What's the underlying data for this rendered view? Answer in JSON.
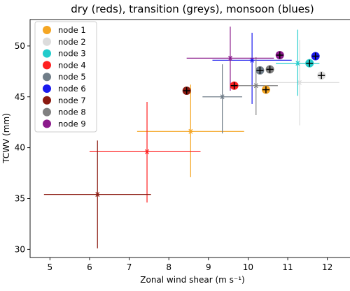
{
  "chart_data": {
    "type": "scatter",
    "title": "dry (reds), transition (greys), monsoon (blues)",
    "xlabel": "Zonal wind shear (m s⁻¹)",
    "ylabel": "TCWV (mm)",
    "xlim": [
      4.5,
      12.5
    ],
    "ylim": [
      29.2,
      52.6
    ],
    "xticks": [
      5,
      6,
      7,
      8,
      9,
      10,
      11,
      12
    ],
    "yticks": [
      30,
      35,
      40,
      45,
      50
    ],
    "legend_position": "top-left",
    "grid": false,
    "series": [
      {
        "name": "node 1",
        "color": "#f5a623",
        "circle": [
          10.45,
          45.7
        ],
        "plus": [
          10.45,
          45.7
        ],
        "star": [
          8.55,
          41.6
        ],
        "xerr": [
          7.2,
          9.9
        ],
        "yerr": [
          37.1,
          46.2
        ]
      },
      {
        "name": "node 2",
        "color": "#dcdcdc",
        "circle": [
          11.85,
          47.1
        ],
        "plus": [
          11.85,
          47.1
        ],
        "star": [
          11.3,
          46.4
        ],
        "xerr": [
          10.3,
          12.3
        ],
        "yerr": [
          42.2,
          50.6
        ]
      },
      {
        "name": "node 3",
        "color": "#22cccc",
        "circle": [
          11.55,
          48.3
        ],
        "plus": [
          11.55,
          48.3
        ],
        "star": [
          11.25,
          48.3
        ],
        "xerr": [
          10.7,
          11.8
        ],
        "yerr": [
          45.1,
          51.6
        ]
      },
      {
        "name": "node 4",
        "color": "#ff2020",
        "circle": [
          9.65,
          46.1
        ],
        "plus": [
          9.65,
          46.1
        ],
        "star": [
          7.45,
          39.6
        ],
        "xerr": [
          6.0,
          8.8
        ],
        "yerr": [
          34.6,
          44.5
        ]
      },
      {
        "name": "node 5",
        "color": "#707d88",
        "circle": [
          10.3,
          47.6
        ],
        "plus": [
          10.3,
          47.6
        ],
        "star": [
          9.35,
          45.0
        ],
        "xerr": [
          8.85,
          9.85
        ],
        "yerr": [
          41.4,
          48.2
        ]
      },
      {
        "name": "node 6",
        "color": "#1a1aee",
        "circle": [
          11.7,
          49.0
        ],
        "plus": [
          11.7,
          49.0
        ],
        "star": [
          10.1,
          48.6
        ],
        "xerr": [
          9.1,
          11.1
        ],
        "yerr": [
          44.3,
          51.3
        ]
      },
      {
        "name": "node 7",
        "color": "#8b1a10",
        "circle": [
          8.45,
          45.6
        ],
        "plus": [
          8.45,
          45.6
        ],
        "star": [
          6.2,
          35.4
        ],
        "xerr": [
          4.85,
          7.55
        ],
        "yerr": [
          30.1,
          40.7
        ]
      },
      {
        "name": "node 8",
        "color": "#808080",
        "circle": [
          10.55,
          47.7
        ],
        "plus": [
          10.55,
          47.7
        ],
        "star": [
          10.2,
          46.1
        ],
        "xerr": [
          9.7,
          10.75
        ],
        "yerr": [
          43.2,
          48.9
        ]
      },
      {
        "name": "node 9",
        "color": "#8b1a8b",
        "circle": [
          10.8,
          49.1
        ],
        "plus": [
          10.8,
          49.1
        ],
        "star": [
          9.55,
          48.8
        ],
        "xerr": [
          8.45,
          10.65
        ],
        "yerr": [
          45.6,
          51.9
        ]
      }
    ]
  }
}
